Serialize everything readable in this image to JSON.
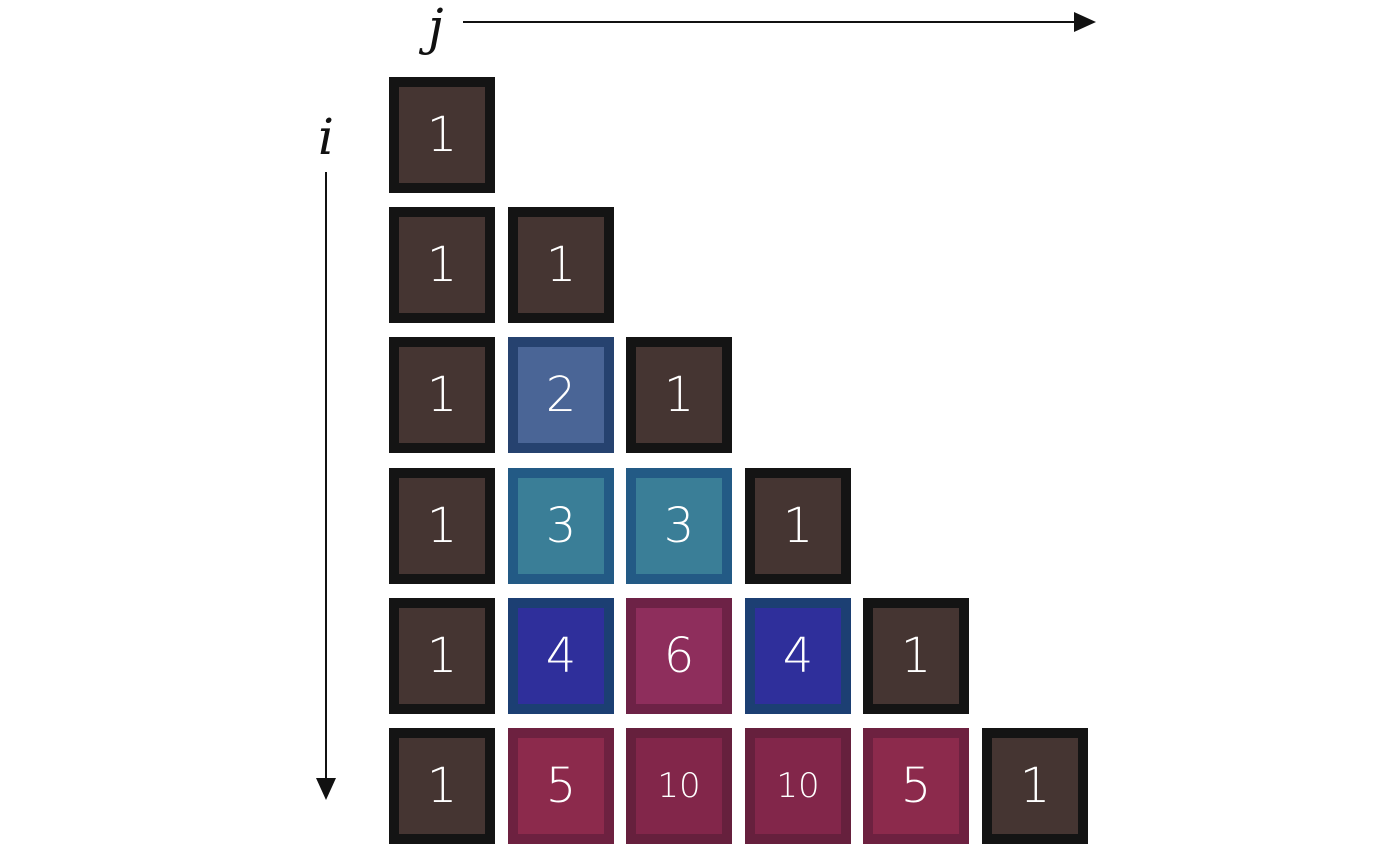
{
  "axes": {
    "column_label": "j",
    "row_label": "i"
  },
  "colors": {
    "one": {
      "fill": "#453532",
      "border": "#141414"
    },
    "two": {
      "fill": "#4a6596",
      "border": "#26426f"
    },
    "three": {
      "fill": "#3a7e97",
      "border": "#235a85"
    },
    "four": {
      "fill": "#2f2f9b",
      "border": "#1c3f73"
    },
    "five": {
      "fill": "#8c2a4c",
      "border": "#6d2140"
    },
    "six": {
      "fill": "#8e2e5c",
      "border": "#6d2246"
    },
    "ten": {
      "fill": "#82264a",
      "border": "#66203d"
    }
  },
  "rows": [
    [
      {
        "value": "1",
        "color": "one"
      }
    ],
    [
      {
        "value": "1",
        "color": "one"
      },
      {
        "value": "1",
        "color": "one"
      }
    ],
    [
      {
        "value": "1",
        "color": "one"
      },
      {
        "value": "2",
        "color": "two"
      },
      {
        "value": "1",
        "color": "one"
      }
    ],
    [
      {
        "value": "1",
        "color": "one"
      },
      {
        "value": "3",
        "color": "three"
      },
      {
        "value": "3",
        "color": "three"
      },
      {
        "value": "1",
        "color": "one"
      }
    ],
    [
      {
        "value": "1",
        "color": "one"
      },
      {
        "value": "4",
        "color": "four"
      },
      {
        "value": "6",
        "color": "six"
      },
      {
        "value": "4",
        "color": "four"
      },
      {
        "value": "1",
        "color": "one"
      }
    ],
    [
      {
        "value": "1",
        "color": "one"
      },
      {
        "value": "5",
        "color": "five"
      },
      {
        "value": "10",
        "color": "ten"
      },
      {
        "value": "10",
        "color": "ten"
      },
      {
        "value": "5",
        "color": "five"
      },
      {
        "value": "1",
        "color": "one"
      }
    ]
  ]
}
